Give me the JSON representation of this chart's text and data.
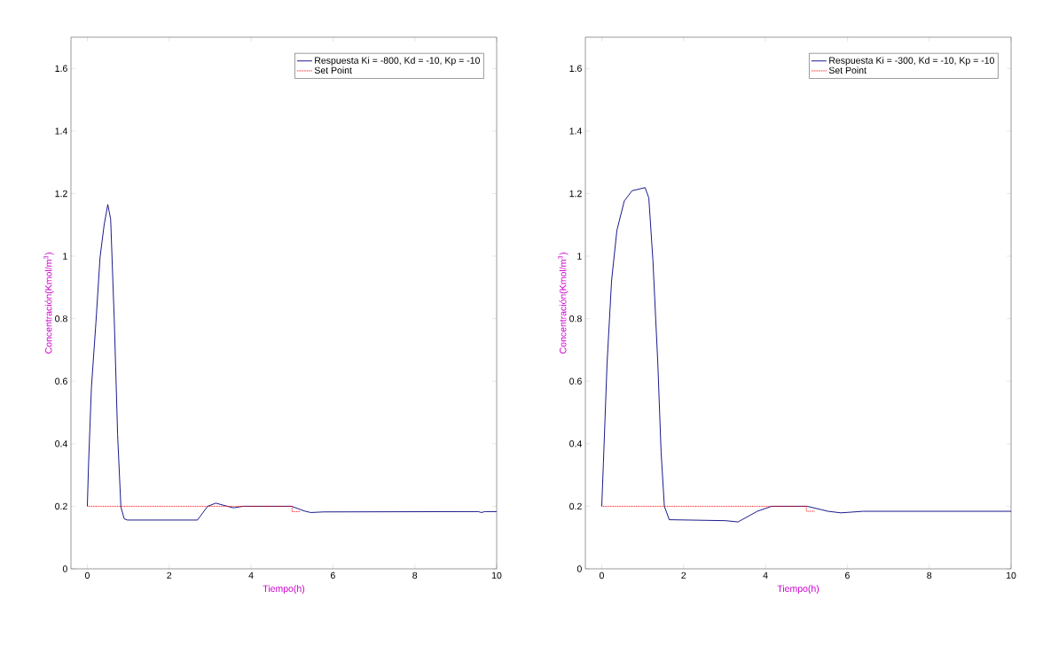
{
  "chart_data": [
    {
      "type": "line",
      "xlabel": "Tiempo(h)",
      "ylabel": "Concentración(Kmol/m$^{3}$)",
      "xlim": [
        -0.4,
        10
      ],
      "ylim": [
        0,
        1.7
      ],
      "xticks": [
        0,
        2,
        4,
        6,
        8,
        10
      ],
      "yticks": [
        0,
        0.2,
        0.4,
        0.6,
        0.8,
        1,
        1.2,
        1.4,
        1.6
      ],
      "grid": false,
      "legend": "top right",
      "series": [
        {
          "name": "Respuesta Ki = -800, Kd = -10, Kp = -10",
          "color": "#00007f",
          "line_style": "solid",
          "x": [
            0,
            0.03,
            0.1,
            0.21,
            0.31,
            0.41,
            0.5,
            0.57,
            0.66,
            0.74,
            0.82,
            0.9,
            0.98,
            2.69,
            2.94,
            3.14,
            3.42,
            3.57,
            3.81,
            4.99,
            5.3,
            5.46,
            5.77,
            9.55,
            9.63,
            9.71,
            10
          ],
          "values": [
            0.2,
            0.335,
            0.58,
            0.788,
            0.995,
            1.099,
            1.165,
            1.118,
            0.788,
            0.429,
            0.198,
            0.16,
            0.156,
            0.156,
            0.2,
            0.21,
            0.2,
            0.195,
            0.2,
            0.2,
            0.185,
            0.18,
            0.182,
            0.183,
            0.18,
            0.183,
            0.183
          ]
        },
        {
          "name": "Set Point",
          "color": "#ff0000",
          "line_style": "dotted",
          "x": [
            0,
            5,
            5,
            5.2
          ],
          "values": [
            0.2,
            0.2,
            0.183,
            0.183
          ]
        }
      ]
    },
    {
      "type": "line",
      "xlabel": "Tiempo(h)",
      "ylabel": "Concentración(Kmol/m$^{3}$)",
      "xlim": [
        -0.4,
        10
      ],
      "ylim": [
        0,
        1.7
      ],
      "xticks": [
        0,
        2,
        4,
        6,
        8,
        10
      ],
      "yticks": [
        0,
        0.2,
        0.4,
        0.6,
        0.8,
        1,
        1.2,
        1.4,
        1.6
      ],
      "grid": false,
      "legend": "top right",
      "series": [
        {
          "name": "Respuesta Ki = -300, Kd = -10, Kp = -10",
          "color": "#00007f",
          "line_style": "solid",
          "x": [
            0,
            0.04,
            0.13,
            0.24,
            0.37,
            0.55,
            0.74,
            1.06,
            1.15,
            1.25,
            1.37,
            1.45,
            1.53,
            1.65,
            3.02,
            3.33,
            3.8,
            4.15,
            5.02,
            5.37,
            5.53,
            5.84,
            6.39,
            10
          ],
          "values": [
            0.2,
            0.335,
            0.657,
            0.921,
            1.082,
            1.176,
            1.209,
            1.219,
            1.186,
            0.987,
            0.657,
            0.373,
            0.2,
            0.157,
            0.154,
            0.15,
            0.184,
            0.2,
            0.2,
            0.189,
            0.184,
            0.179,
            0.184,
            0.184
          ]
        },
        {
          "name": "Set Point",
          "color": "#ff0000",
          "line_style": "dotted",
          "x": [
            0,
            5,
            5,
            5.2
          ],
          "values": [
            0.2,
            0.2,
            0.184,
            0.184
          ]
        }
      ]
    }
  ]
}
